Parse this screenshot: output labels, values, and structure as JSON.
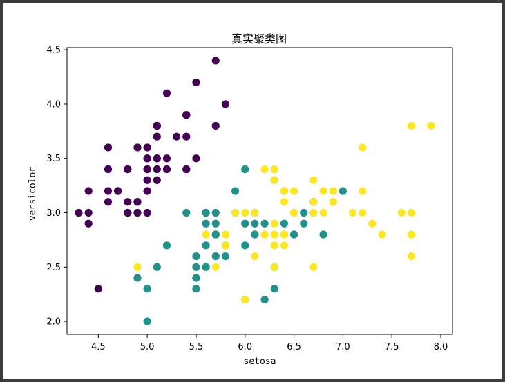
{
  "chart_data": {
    "type": "scatter",
    "title": "真实聚类图",
    "xlabel": "setosa",
    "ylabel": "versicolor",
    "xlim": [
      4.18,
      8.12
    ],
    "ylim": [
      1.88,
      4.52
    ],
    "xticks": [
      "4.5",
      "5.0",
      "5.5",
      "6.0",
      "6.5",
      "7.0",
      "7.5",
      "8.0"
    ],
    "yticks": [
      "2.0",
      "2.5",
      "3.0",
      "3.5",
      "4.0",
      "4.5"
    ],
    "grid": false,
    "legend": false,
    "colors": {
      "class0": "#440154",
      "class1": "#21918c",
      "class2": "#fde725"
    },
    "series": [
      {
        "color": "#440154",
        "points": [
          [
            5.1,
            3.5
          ],
          [
            4.9,
            3.0
          ],
          [
            4.7,
            3.2
          ],
          [
            4.6,
            3.1
          ],
          [
            5.0,
            3.6
          ],
          [
            5.4,
            3.9
          ],
          [
            4.6,
            3.4
          ],
          [
            5.0,
            3.4
          ],
          [
            4.4,
            2.9
          ],
          [
            4.9,
            3.1
          ],
          [
            5.4,
            3.7
          ],
          [
            4.8,
            3.4
          ],
          [
            4.8,
            3.0
          ],
          [
            4.3,
            3.0
          ],
          [
            5.8,
            4.0
          ],
          [
            5.7,
            4.4
          ],
          [
            5.4,
            3.9
          ],
          [
            5.1,
            3.5
          ],
          [
            5.7,
            3.8
          ],
          [
            5.1,
            3.8
          ],
          [
            5.4,
            3.4
          ],
          [
            5.1,
            3.7
          ],
          [
            4.6,
            3.6
          ],
          [
            5.1,
            3.3
          ],
          [
            4.8,
            3.4
          ],
          [
            5.0,
            3.0
          ],
          [
            5.0,
            3.4
          ],
          [
            5.2,
            3.5
          ],
          [
            5.2,
            3.4
          ],
          [
            4.7,
            3.2
          ],
          [
            4.8,
            3.1
          ],
          [
            5.4,
            3.4
          ],
          [
            5.2,
            4.1
          ],
          [
            5.5,
            4.2
          ],
          [
            4.9,
            3.1
          ],
          [
            5.0,
            3.2
          ],
          [
            5.5,
            3.5
          ],
          [
            4.9,
            3.6
          ],
          [
            4.4,
            3.0
          ],
          [
            5.1,
            3.4
          ],
          [
            5.0,
            3.5
          ],
          [
            4.5,
            2.3
          ],
          [
            4.4,
            3.2
          ],
          [
            5.0,
            3.5
          ],
          [
            5.1,
            3.8
          ],
          [
            4.8,
            3.0
          ],
          [
            5.1,
            3.8
          ],
          [
            4.6,
            3.2
          ],
          [
            5.3,
            3.7
          ],
          [
            5.0,
            3.3
          ]
        ]
      },
      {
        "color": "#21918c",
        "points": [
          [
            7.0,
            3.2
          ],
          [
            6.4,
            3.2
          ],
          [
            6.9,
            3.1
          ],
          [
            5.5,
            2.3
          ],
          [
            6.5,
            2.8
          ],
          [
            5.7,
            2.8
          ],
          [
            6.3,
            3.3
          ],
          [
            4.9,
            2.4
          ],
          [
            6.6,
            2.9
          ],
          [
            5.2,
            2.7
          ],
          [
            5.0,
            2.0
          ],
          [
            5.9,
            3.0
          ],
          [
            6.0,
            2.2
          ],
          [
            6.1,
            2.9
          ],
          [
            5.6,
            2.9
          ],
          [
            6.7,
            3.1
          ],
          [
            5.6,
            3.0
          ],
          [
            5.8,
            2.7
          ],
          [
            6.2,
            2.2
          ],
          [
            5.6,
            2.5
          ],
          [
            5.9,
            3.2
          ],
          [
            6.1,
            2.8
          ],
          [
            6.3,
            2.5
          ],
          [
            6.1,
            2.8
          ],
          [
            6.4,
            2.9
          ],
          [
            6.6,
            3.0
          ],
          [
            6.8,
            2.8
          ],
          [
            6.7,
            3.0
          ],
          [
            6.0,
            2.9
          ],
          [
            5.7,
            2.6
          ],
          [
            5.5,
            2.4
          ],
          [
            5.5,
            2.4
          ],
          [
            5.8,
            2.7
          ],
          [
            6.0,
            2.7
          ],
          [
            5.4,
            3.0
          ],
          [
            6.0,
            3.4
          ],
          [
            6.7,
            3.1
          ],
          [
            6.3,
            2.3
          ],
          [
            5.6,
            3.0
          ],
          [
            5.5,
            2.5
          ],
          [
            5.5,
            2.6
          ],
          [
            6.1,
            3.0
          ],
          [
            5.8,
            2.6
          ],
          [
            5.0,
            2.3
          ],
          [
            5.6,
            2.7
          ],
          [
            5.7,
            3.0
          ],
          [
            5.7,
            2.9
          ],
          [
            6.2,
            2.9
          ],
          [
            5.1,
            2.5
          ],
          [
            5.7,
            2.8
          ]
        ]
      },
      {
        "color": "#fde725",
        "points": [
          [
            6.3,
            3.3
          ],
          [
            5.8,
            2.7
          ],
          [
            7.1,
            3.0
          ],
          [
            6.3,
            2.9
          ],
          [
            6.5,
            3.0
          ],
          [
            7.6,
            3.0
          ],
          [
            4.9,
            2.5
          ],
          [
            7.3,
            2.9
          ],
          [
            6.7,
            2.5
          ],
          [
            7.2,
            3.6
          ],
          [
            6.5,
            3.2
          ],
          [
            6.4,
            2.7
          ],
          [
            6.8,
            3.0
          ],
          [
            5.7,
            2.5
          ],
          [
            5.8,
            2.8
          ],
          [
            6.4,
            3.2
          ],
          [
            6.5,
            3.0
          ],
          [
            7.7,
            3.8
          ],
          [
            7.7,
            2.6
          ],
          [
            6.0,
            2.2
          ],
          [
            6.9,
            3.2
          ],
          [
            5.6,
            2.8
          ],
          [
            7.7,
            2.8
          ],
          [
            6.3,
            2.7
          ],
          [
            6.7,
            3.3
          ],
          [
            7.2,
            3.2
          ],
          [
            6.2,
            2.8
          ],
          [
            6.1,
            3.0
          ],
          [
            6.4,
            2.8
          ],
          [
            7.2,
            3.0
          ],
          [
            7.4,
            2.8
          ],
          [
            7.9,
            3.8
          ],
          [
            6.4,
            2.8
          ],
          [
            6.3,
            2.8
          ],
          [
            6.1,
            2.6
          ],
          [
            7.7,
            3.0
          ],
          [
            6.3,
            3.4
          ],
          [
            6.4,
            3.1
          ],
          [
            6.0,
            3.0
          ],
          [
            6.9,
            3.1
          ],
          [
            6.7,
            3.1
          ],
          [
            6.9,
            3.1
          ],
          [
            5.8,
            2.7
          ],
          [
            6.8,
            3.2
          ],
          [
            6.7,
            3.3
          ],
          [
            6.7,
            3.0
          ],
          [
            6.3,
            2.5
          ],
          [
            6.5,
            3.0
          ],
          [
            6.2,
            3.4
          ],
          [
            5.9,
            3.0
          ]
        ]
      }
    ]
  }
}
